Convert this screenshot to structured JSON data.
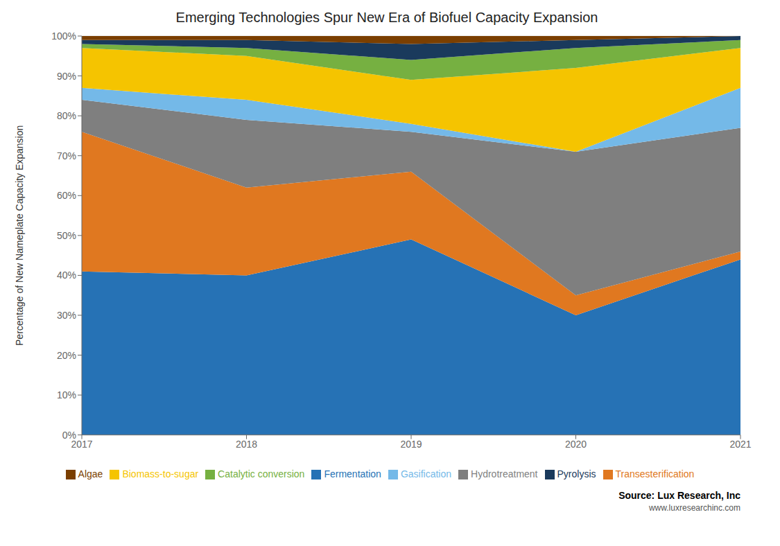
{
  "chart_data": {
    "type": "area",
    "stacked": true,
    "title": "Emerging Technologies Spur New Era of Biofuel Capacity Expansion",
    "y_label": "Percentage of New Nameplate Capacity Expansion",
    "annotations": [
      "Source: Lux Research, Inc",
      "www.luxresearchinc.com"
    ],
    "x": [
      2017,
      2018,
      2019,
      2020,
      2021
    ],
    "series": [
      {
        "name": "Fermentation",
        "color": "#2672b5",
        "values": [
          41,
          40,
          49,
          30,
          44
        ]
      },
      {
        "name": "Transesterification",
        "color": "#e07820",
        "values": [
          35,
          22,
          17,
          5,
          2
        ]
      },
      {
        "name": "Hydrotreatment",
        "color": "#7f7f7f",
        "values": [
          8,
          17,
          10,
          36,
          31
        ]
      },
      {
        "name": "Gasification",
        "color": "#74b9e8",
        "values": [
          3,
          5,
          2,
          0,
          10
        ]
      },
      {
        "name": "Biomass-to-sugar",
        "color": "#f5c400",
        "values": [
          10,
          11,
          11,
          21,
          10
        ]
      },
      {
        "name": "Catalytic conversion",
        "color": "#76b041",
        "values": [
          1,
          2,
          5,
          5,
          2
        ]
      },
      {
        "name": "Pyrolysis",
        "color": "#1a3a5c",
        "values": [
          1,
          2,
          4,
          2,
          1
        ]
      },
      {
        "name": "Algae",
        "color": "#7b3f00",
        "values": [
          1,
          1,
          2,
          1,
          0
        ]
      }
    ],
    "xlim": [
      2017,
      2021
    ],
    "xticks": [
      2017,
      2018,
      2019,
      2020,
      2021
    ],
    "ylim": [
      0,
      100
    ],
    "yticks": [
      {
        "value": 0,
        "label": "0%"
      },
      {
        "value": 10,
        "label": "10%"
      },
      {
        "value": 20,
        "label": "20%"
      },
      {
        "value": 30,
        "label": "30%"
      },
      {
        "value": 40,
        "label": "40%"
      },
      {
        "value": 50,
        "label": "50%"
      },
      {
        "value": 60,
        "label": "60%"
      },
      {
        "value": 70,
        "label": "70%"
      },
      {
        "value": 80,
        "label": "80%"
      },
      {
        "value": 90,
        "label": "90%"
      },
      {
        "value": 100,
        "label": "100%"
      }
    ],
    "grid": true,
    "legend": "bottom"
  }
}
